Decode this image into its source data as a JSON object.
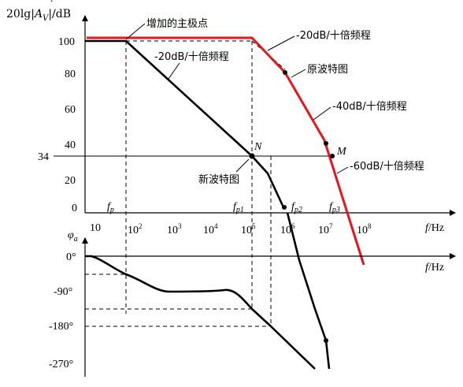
{
  "mag": {
    "ylabel_a": "20lg|",
    "ylabel_A": "A",
    "ylabel_sub": "V",
    "ylabel_b": "|/dB",
    "y_ticks": [
      "100",
      "80",
      "60",
      "40",
      "34",
      "20",
      "0"
    ],
    "x_label_f": "f",
    "x_label_unit": "/Hz",
    "fp": "f",
    "fp_sub": "p",
    "fp1": "f",
    "fp1_sub": "p1",
    "fp2": "f",
    "fp2_sub": "p2",
    "fp3": "f",
    "fp3_sub": "p3",
    "point_N": "N",
    "point_M": "M"
  },
  "x_ticks": [
    {
      "base": "10",
      "exp": ""
    },
    {
      "base": "10",
      "exp": "2"
    },
    {
      "base": "10",
      "exp": "3"
    },
    {
      "base": "10",
      "exp": "4"
    },
    {
      "base": "10",
      "exp": "5"
    },
    {
      "base": "10",
      "exp": "6"
    },
    {
      "base": "10",
      "exp": "7"
    },
    {
      "base": "10",
      "exp": "8"
    }
  ],
  "annotations": {
    "added_pole": "增加的主极点",
    "slope_20_red": "-20dB/十倍频程",
    "slope_20_black": "-20dB/十倍频程",
    "original_char": "原波特图",
    "slope_40": "-40dB/十倍频程",
    "slope_60": "-60dB/十倍频程",
    "new_char": "新波特图"
  },
  "phase": {
    "ylabel_phi": "φ",
    "ylabel_sub": "a",
    "y_ticks": [
      "0°",
      "-90°",
      "-180°",
      "-270°"
    ],
    "x_label_f": "f",
    "x_label_unit": "/Hz"
  },
  "colors": {
    "original_curve": "#e8141b",
    "new_curve": "#000000"
  }
}
